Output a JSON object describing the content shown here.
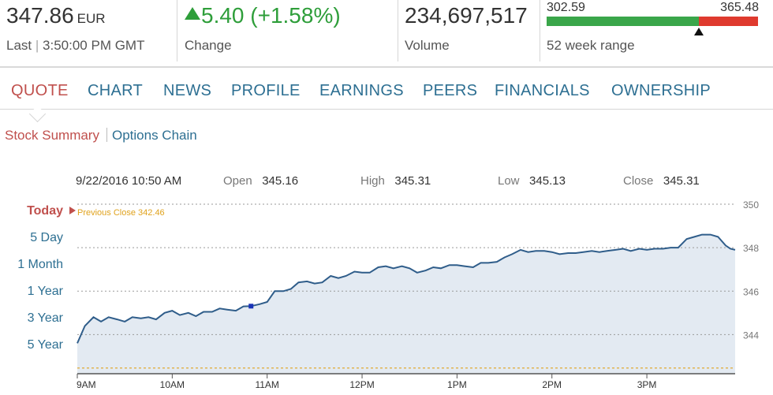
{
  "header": {
    "last_price": "347.86",
    "currency": "EUR",
    "last_label": "Last",
    "last_time": "3:50:00 PM GMT",
    "change_value": "5.40 (+1.58%)",
    "change_label": "Change",
    "volume_value": "234,697,517",
    "volume_label": "Volume",
    "range_low": "302.59",
    "range_high": "365.48",
    "range_label": "52 week range",
    "range_low_num": 302.59,
    "range_high_num": 365.48,
    "range_current_num": 347.86,
    "up_color": "#3aa64a",
    "down_color": "#df3a2e"
  },
  "tabs": [
    {
      "label": "QUOTE",
      "active": true
    },
    {
      "label": "CHART"
    },
    {
      "label": "NEWS"
    },
    {
      "label": "PROFILE"
    },
    {
      "label": "EARNINGS"
    },
    {
      "label": "PEERS"
    },
    {
      "label": "FINANCIALS"
    },
    {
      "label": "OWNERSHIP"
    }
  ],
  "subnav": {
    "active": "Stock Summary",
    "link": "Options Chain"
  },
  "periods": [
    {
      "label": "Today",
      "active": true
    },
    {
      "label": "5 Day"
    },
    {
      "label": "1 Month"
    },
    {
      "label": "1 Year"
    },
    {
      "label": "3 Year"
    },
    {
      "label": "5 Year"
    }
  ],
  "hover_info": {
    "datetime": "9/22/2016 10:50 AM",
    "open_label": "Open",
    "open": "345.16",
    "high_label": "High",
    "high": "345.31",
    "low_label": "Low",
    "low": "345.13",
    "close_label": "Close",
    "close": "345.31"
  },
  "chart_data": {
    "type": "area",
    "prev_close_label": "Previous Close 342.46",
    "prev_close": 342.46,
    "x_ticks": [
      "9AM",
      "10AM",
      "11AM",
      "12PM",
      "1PM",
      "2PM",
      "3PM"
    ],
    "x_tick_hours": [
      9,
      10,
      11,
      12,
      13,
      14,
      15
    ],
    "y_ticks": [
      344,
      346,
      348,
      350
    ],
    "ylim": [
      342.2,
      350.4
    ],
    "xlim_hours": [
      9.0,
      15.93
    ],
    "highlight_point": {
      "hour": 10.83,
      "price": 345.31
    },
    "series": [
      {
        "hours": [
          9.0,
          9.08,
          9.17,
          9.25,
          9.33,
          9.42,
          9.5,
          9.58,
          9.67,
          9.75,
          9.83,
          9.92,
          10.0,
          10.08,
          10.17,
          10.25,
          10.33,
          10.42,
          10.5,
          10.58,
          10.67,
          10.75,
          10.83,
          10.92,
          11.0,
          11.08,
          11.17,
          11.25,
          11.33,
          11.42,
          11.5,
          11.58,
          11.67,
          11.75,
          11.83,
          11.92,
          12.0,
          12.08,
          12.17,
          12.25,
          12.33,
          12.42,
          12.5,
          12.58,
          12.67,
          12.75,
          12.83,
          12.92,
          13.0,
          13.08,
          13.17,
          13.25,
          13.33,
          13.42,
          13.5,
          13.58,
          13.67,
          13.75,
          13.83,
          13.92,
          14.0,
          14.08,
          14.17,
          14.25,
          14.33,
          14.42,
          14.5,
          14.58,
          14.67,
          14.75,
          14.83,
          14.92,
          15.0,
          15.08,
          15.17,
          15.25,
          15.33,
          15.42,
          15.5,
          15.58,
          15.67,
          15.75,
          15.83,
          15.88,
          15.93
        ],
        "values": [
          343.6,
          344.4,
          344.8,
          344.6,
          344.8,
          344.7,
          344.6,
          344.8,
          344.75,
          344.8,
          344.7,
          345.0,
          345.1,
          344.9,
          345.0,
          344.85,
          345.05,
          345.05,
          345.2,
          345.15,
          345.1,
          345.3,
          345.31,
          345.4,
          345.5,
          346.0,
          346.0,
          346.1,
          346.4,
          346.45,
          346.35,
          346.4,
          346.7,
          346.6,
          346.7,
          346.9,
          346.85,
          346.85,
          347.1,
          347.15,
          347.05,
          347.15,
          347.05,
          346.85,
          346.95,
          347.1,
          347.05,
          347.2,
          347.2,
          347.15,
          347.1,
          347.3,
          347.3,
          347.35,
          347.55,
          347.7,
          347.9,
          347.8,
          347.85,
          347.85,
          347.8,
          347.7,
          347.75,
          347.75,
          347.8,
          347.85,
          347.8,
          347.85,
          347.9,
          347.95,
          347.85,
          347.95,
          347.9,
          347.95,
          347.95,
          348.0,
          348.0,
          348.4,
          348.5,
          348.6,
          348.6,
          348.5,
          348.1,
          347.95,
          347.9
        ]
      }
    ],
    "line_color": "#2f5d8a",
    "fill_color": "#e3eaf2",
    "prev_close_color": "#e0a21c",
    "today_color": "#c0504d"
  }
}
